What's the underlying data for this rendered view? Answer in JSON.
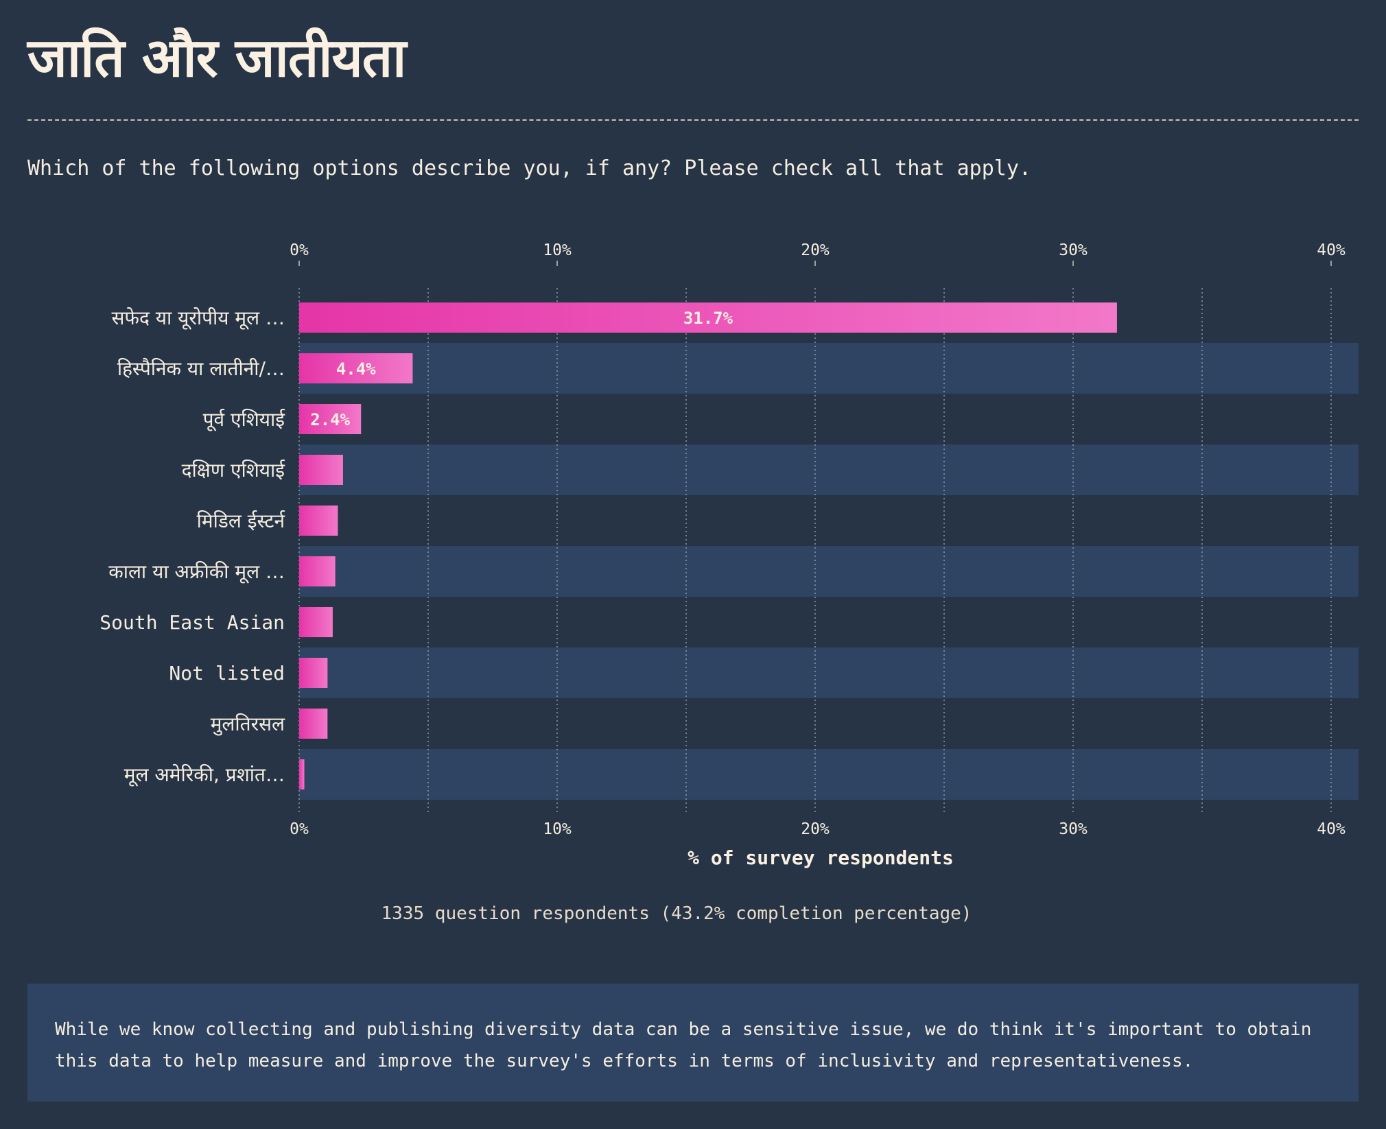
{
  "page": {
    "title": "जाति और जातीयता",
    "question": "Which of the following options describe you, if any? Please check all that apply.",
    "respondents_note": "1335 question respondents (43.2% completion percentage)",
    "footer_note": "While we know collecting and publishing diversity data can be a sensitive issue, we do think it's important to obtain this data to help measure and improve the survey's efforts in terms of inclusivity and representativeness."
  },
  "colors": {
    "background": "#263445",
    "band": "#2e4462",
    "bar_start": "#e535a8",
    "bar_end": "#f278c9",
    "text": "#f5ede0"
  },
  "chart_data": {
    "type": "bar",
    "orientation": "horizontal",
    "title": "",
    "xlabel": "% of survey respondents",
    "ylabel": "",
    "xlim": [
      0,
      41
    ],
    "x_ticks": [
      0,
      10,
      20,
      30,
      40
    ],
    "x_tick_labels": [
      "0%",
      "10%",
      "20%",
      "30%",
      "40%"
    ],
    "grid": "vertical dotted lines every 5%",
    "categories": [
      "सफेद या यूरोपीय मूल …",
      "हिस्पैनिक या लातीनी/…",
      "पूर्व एशियाई",
      "दक्षिण एशियाई",
      "मिडिल ईस्टर्न",
      "काला या अफ्रीकी मूल …",
      "South East Asian",
      "Not listed",
      "मुलतिरसल",
      "मूल अमेरिकी, प्रशांत…"
    ],
    "values": [
      31.7,
      4.4,
      2.4,
      1.7,
      1.5,
      1.4,
      1.3,
      1.1,
      1.1,
      0.2
    ],
    "data_labels": [
      "31.7%",
      "4.4%",
      "2.4%",
      "",
      "",
      "",
      "",
      "",
      "",
      ""
    ]
  }
}
